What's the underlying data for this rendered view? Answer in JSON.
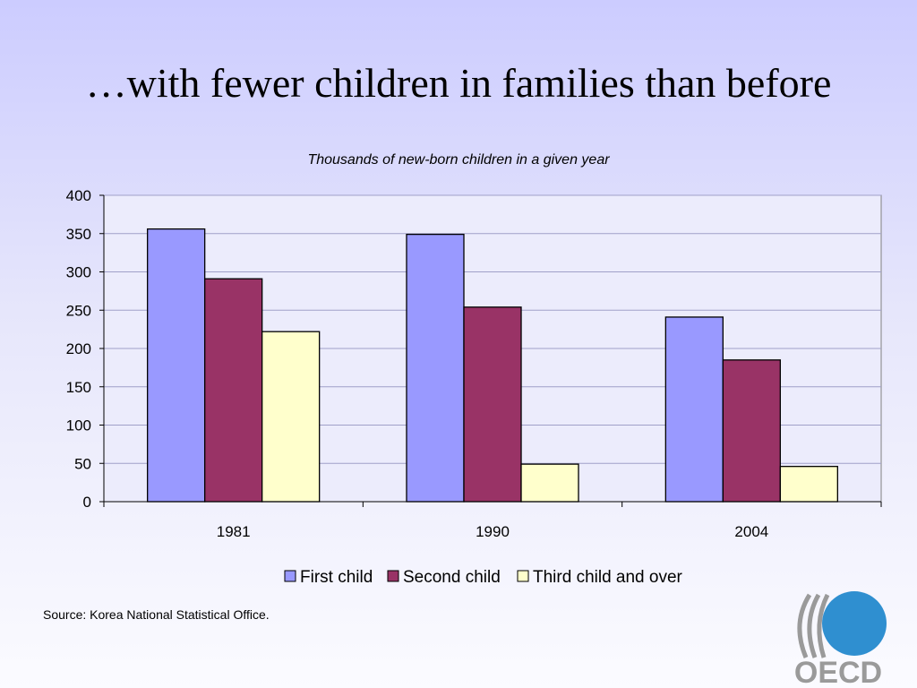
{
  "slide": {
    "title": "…with fewer children in families than before",
    "source": "Source: Korea National Statistical Office.",
    "logo_text": "OECD"
  },
  "chart_data": {
    "type": "bar",
    "title": "Thousands of new-born children in a given year",
    "categories": [
      "1981",
      "1990",
      "2004"
    ],
    "series": [
      {
        "name": "First child",
        "values": [
          356,
          349,
          241
        ],
        "color": "#9999ff"
      },
      {
        "name": "Second child",
        "values": [
          291,
          254,
          185
        ],
        "color": "#993366"
      },
      {
        "name": "Third child and over",
        "values": [
          222,
          49,
          46
        ],
        "color": "#ffffcc"
      }
    ],
    "ylim": [
      0,
      400
    ],
    "yticks": [
      0,
      50,
      100,
      150,
      200,
      250,
      300,
      350,
      400
    ],
    "grid": true,
    "legend": "bottom",
    "plot_background": "#ececfc",
    "gridline_color": "#a0a0c8"
  }
}
